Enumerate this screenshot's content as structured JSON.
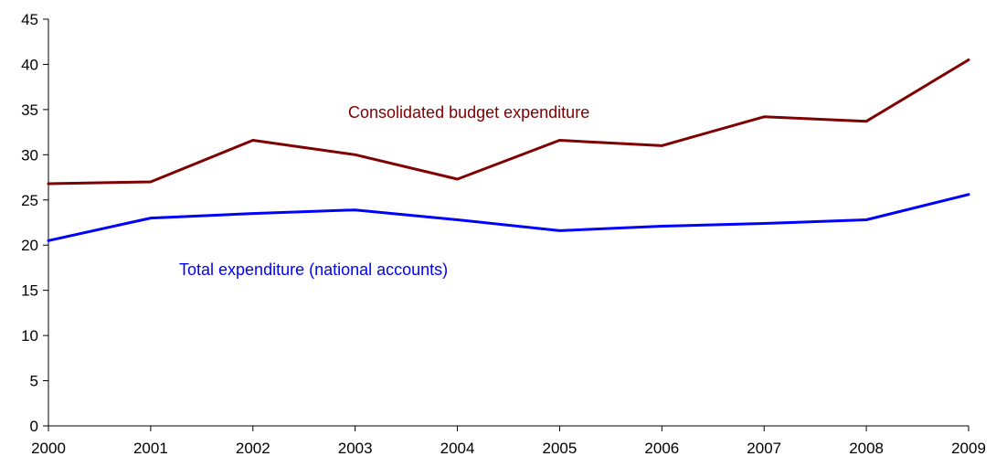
{
  "chart_data": {
    "type": "line",
    "title": "",
    "xlabel": "",
    "ylabel": "",
    "categories": [
      "2000",
      "2001",
      "2002",
      "2003",
      "2004",
      "2005",
      "2006",
      "2007",
      "2008",
      "2009"
    ],
    "ylim": [
      0,
      45
    ],
    "yticks": [
      "0",
      "5",
      "10",
      "15",
      "20",
      "25",
      "30",
      "35",
      "40",
      "45"
    ],
    "grid": false,
    "series": [
      {
        "name": "Consolidated budget expenditure",
        "color": "#7f0000",
        "values": [
          26.8,
          27.0,
          31.6,
          30.0,
          27.3,
          31.6,
          31.0,
          34.2,
          33.7,
          40.5
        ]
      },
      {
        "name": "Total expenditure (national accounts)",
        "color": "#0000ff",
        "values": [
          20.5,
          23.0,
          23.5,
          23.9,
          22.8,
          21.6,
          22.1,
          22.4,
          22.8,
          25.6
        ]
      }
    ],
    "annotations": [
      {
        "text": "Consolidated budget expenditure",
        "series": 0
      },
      {
        "text": "Total expenditure (national accounts)",
        "series": 1
      }
    ]
  }
}
